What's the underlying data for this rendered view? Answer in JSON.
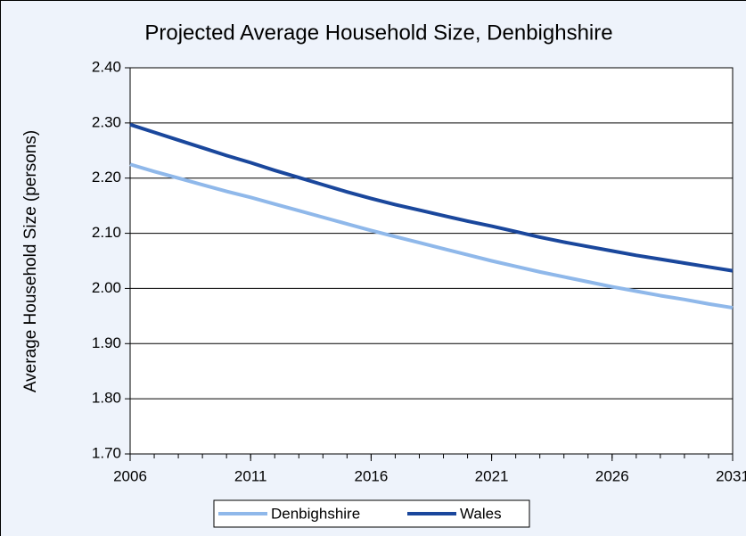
{
  "chart_data": {
    "type": "line",
    "title": "Projected Average Household Size, Denbighshire",
    "y_label": "Average Household Size (persons)",
    "x": [
      2006,
      2007,
      2008,
      2009,
      2010,
      2011,
      2012,
      2013,
      2014,
      2015,
      2016,
      2017,
      2018,
      2019,
      2020,
      2021,
      2022,
      2023,
      2024,
      2025,
      2026,
      2027,
      2028,
      2029,
      2030,
      2031
    ],
    "series": [
      {
        "name": "Denbighshire",
        "color": "#8fb8ea",
        "values": [
          2.225,
          2.212,
          2.2,
          2.188,
          2.176,
          2.165,
          2.153,
          2.141,
          2.129,
          2.117,
          2.105,
          2.094,
          2.083,
          2.072,
          2.061,
          2.05,
          2.04,
          2.03,
          2.021,
          2.012,
          2.003,
          1.995,
          1.987,
          1.98,
          1.972,
          1.965
        ]
      },
      {
        "name": "Wales",
        "color": "#1a479c",
        "values": [
          2.297,
          2.283,
          2.269,
          2.255,
          2.241,
          2.228,
          2.214,
          2.201,
          2.188,
          2.175,
          2.163,
          2.152,
          2.142,
          2.132,
          2.122,
          2.113,
          2.103,
          2.093,
          2.084,
          2.076,
          2.068,
          2.06,
          2.053,
          2.046,
          2.039,
          2.032
        ]
      }
    ],
    "xlim": [
      2006,
      2031
    ],
    "xticks": [
      2006,
      2011,
      2016,
      2021,
      2026,
      2031
    ],
    "ylim": [
      1.7,
      2.4
    ],
    "yticks": [
      {
        "value": 1.7,
        "label": "1.70"
      },
      {
        "value": 1.8,
        "label": "1.80"
      },
      {
        "value": 1.9,
        "label": "1.90"
      },
      {
        "value": 2.0,
        "label": "2.00"
      },
      {
        "value": 2.1,
        "label": "2.10"
      },
      {
        "value": 2.2,
        "label": "2.20"
      },
      {
        "value": 2.3,
        "label": "2.30"
      },
      {
        "value": 2.4,
        "label": "2.40"
      }
    ],
    "grid": true,
    "legend": "bottom"
  }
}
